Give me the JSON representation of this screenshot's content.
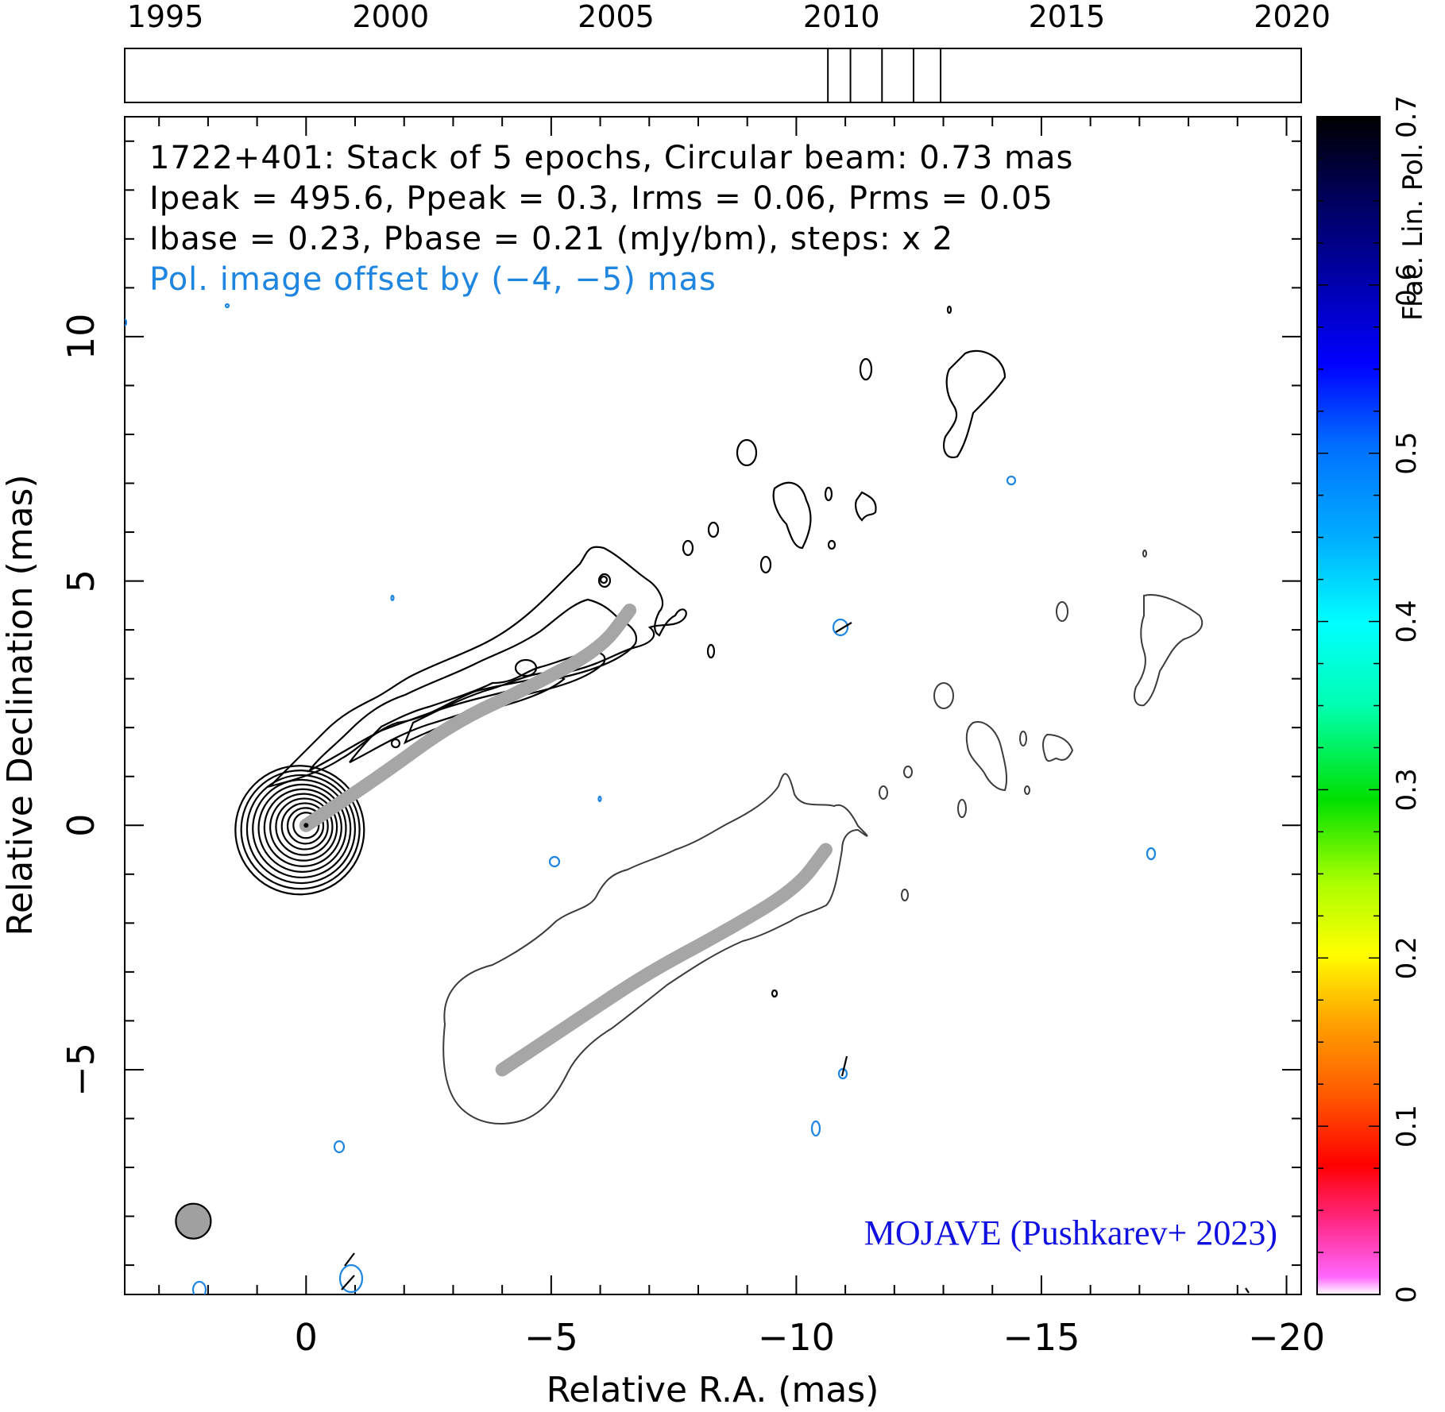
{
  "chart_data": {
    "type": "contour",
    "source": "1722+401",
    "info_lines": [
      "1722+401: Stack of 5 epochs, Circular beam: 0.73 mas",
      "Ipeak = 495.6, Ppeak = 0.3, Irms = 0.06, Prms = 0.05",
      "Ibase = 0.23, Pbase = 0.21 (mJy/bm), steps: x 2"
    ],
    "pol_offset_note": "Pol. image offset by (−4, −5) mas",
    "credit": "MOJAVE (Pushkarev+ 2023)",
    "xlabel": "Relative R.A. (mas)",
    "ylabel": "Relative Declination (mas)",
    "xlim": [
      3.7,
      -20.3
    ],
    "ylim": [
      -9.6,
      14.5
    ],
    "x_ticks": [
      0,
      -5,
      -10,
      -15,
      -20
    ],
    "x_tick_labels": [
      "0",
      "−5",
      "−10",
      "−15",
      "−20"
    ],
    "y_ticks": [
      -5,
      0,
      5,
      10
    ],
    "y_tick_labels": [
      "−5",
      "0",
      "5",
      "10"
    ],
    "epoch_timeline": {
      "range": [
        1994.1,
        2020.2
      ],
      "year_labels": [
        "1995",
        "2000",
        "2005",
        "2010",
        "2015",
        "2020"
      ],
      "year_values": [
        1995,
        2000,
        2005,
        2010,
        2015,
        2020
      ],
      "epochs": [
        2009.7,
        2010.2,
        2010.9,
        2011.6,
        2012.2
      ]
    },
    "colorbar": {
      "label": "Frac. Lin. Pol.",
      "range": [
        0,
        0.7
      ],
      "ticks": [
        0,
        0.1,
        0.2,
        0.3,
        0.4,
        0.5,
        0.6,
        0.7
      ],
      "tick_labels": [
        "0",
        "0.1",
        "0.2",
        "0.3",
        "0.4",
        "0.5",
        "0.6",
        "0.7"
      ]
    },
    "beam": {
      "x": 2.3,
      "y": -8.1,
      "diameter_mas": 0.73
    },
    "ridgeline_total_intensity": [
      [
        0,
        0
      ],
      [
        -1.5,
        1.0
      ],
      [
        -3,
        2.1
      ],
      [
        -4.5,
        2.8
      ],
      [
        -6,
        3.6
      ],
      [
        -6.6,
        4.4
      ]
    ],
    "ridgeline_polarization": [
      [
        -4,
        -5
      ],
      [
        -5.5,
        -4.0
      ],
      [
        -7,
        -3.0
      ],
      [
        -8.5,
        -2.2
      ],
      [
        -10,
        -1.3
      ],
      [
        -10.6,
        -0.5
      ]
    ],
    "core_contour_count": 11
  },
  "colors": {
    "total_intensity_contour": "#000000",
    "polarization_contour": "#3c3c3c",
    "ridgeline": "#a6a6a6",
    "fpol_patch": "#1e86e0",
    "beam_fill": "#a0a0a0",
    "credit_text": "#1010e0",
    "offset_note_text": "#1e86e0"
  }
}
